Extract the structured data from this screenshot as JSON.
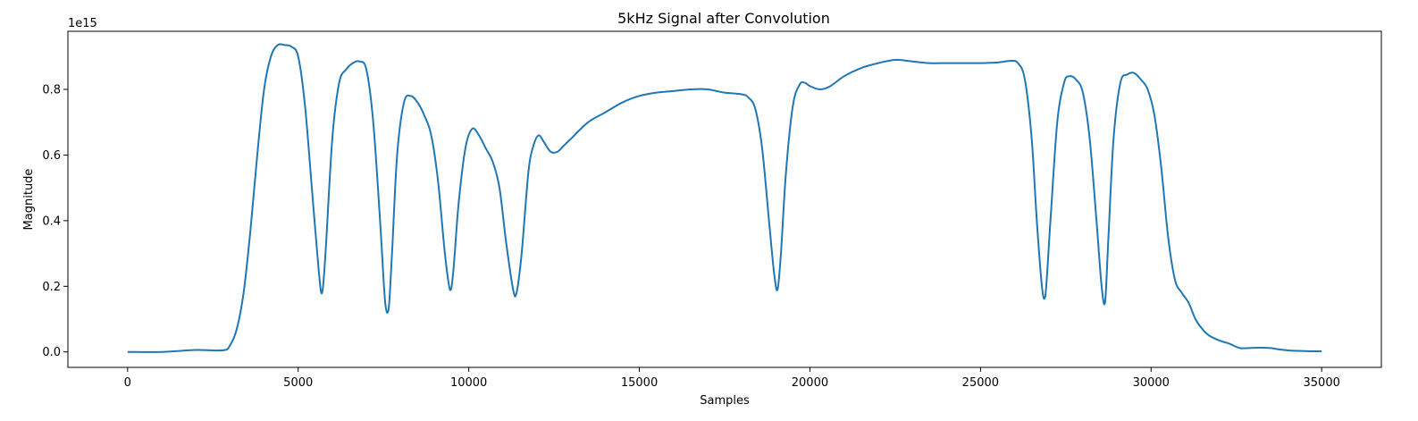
{
  "chart_data": {
    "type": "line",
    "title": "5kHz Signal after Convolution",
    "xlabel": "Samples",
    "ylabel": "Magnitude",
    "y_offset_label": "1e15",
    "xlim": [
      -1750,
      36750
    ],
    "ylim": [
      -0.047,
      0.977
    ],
    "x_ticks": [
      0,
      5000,
      10000,
      15000,
      20000,
      25000,
      30000,
      35000
    ],
    "x_tick_labels": [
      "0",
      "5000",
      "10000",
      "15000",
      "20000",
      "25000",
      "30000",
      "35000"
    ],
    "y_ticks": [
      0.0,
      0.2,
      0.4,
      0.6,
      0.8
    ],
    "y_tick_labels": [
      "0.0",
      "0.2",
      "0.4",
      "0.6",
      "0.8"
    ],
    "grid": false,
    "series": [
      {
        "color": "#1f77b4",
        "x": [
          0,
          1000,
          2000,
          2800,
          3000,
          3200,
          3400,
          3600,
          3800,
          4000,
          4200,
          4400,
          4600,
          4800,
          5000,
          5200,
          5400,
          5600,
          5700,
          5800,
          6000,
          6200,
          6400,
          6600,
          6800,
          7000,
          7200,
          7400,
          7550,
          7650,
          7750,
          7900,
          8100,
          8300,
          8500,
          8700,
          8900,
          9100,
          9300,
          9450,
          9550,
          9700,
          9900,
          10100,
          10300,
          10500,
          10700,
          10900,
          11100,
          11300,
          11400,
          11550,
          11750,
          11900,
          12050,
          12200,
          12400,
          12600,
          12800,
          13000,
          13500,
          14000,
          14500,
          15000,
          15500,
          16000,
          16500,
          17000,
          17500,
          18000,
          18200,
          18400,
          18600,
          18800,
          18950,
          19050,
          19150,
          19300,
          19500,
          19700,
          19850,
          20000,
          20300,
          20600,
          21000,
          21500,
          22000,
          22500,
          23000,
          23500,
          24000,
          24500,
          25000,
          25500,
          25900,
          26100,
          26300,
          26500,
          26650,
          26800,
          26900,
          27050,
          27250,
          27450,
          27600,
          27800,
          28000,
          28200,
          28400,
          28550,
          28650,
          28750,
          28900,
          29100,
          29300,
          29500,
          29700,
          29900,
          30100,
          30300,
          30500,
          30700,
          30900,
          31100,
          31300,
          31500,
          31700,
          32000,
          32300,
          32600,
          32900,
          33200,
          33500,
          33800,
          34100,
          34400,
          34700,
          35000
        ],
        "y": [
          0.0,
          0.0,
          0.006,
          0.005,
          0.02,
          0.07,
          0.18,
          0.37,
          0.6,
          0.8,
          0.9,
          0.935,
          0.935,
          0.93,
          0.9,
          0.75,
          0.5,
          0.25,
          0.18,
          0.3,
          0.65,
          0.82,
          0.86,
          0.88,
          0.885,
          0.86,
          0.7,
          0.4,
          0.15,
          0.13,
          0.3,
          0.6,
          0.76,
          0.78,
          0.76,
          0.72,
          0.66,
          0.52,
          0.3,
          0.19,
          0.25,
          0.45,
          0.62,
          0.68,
          0.66,
          0.62,
          0.58,
          0.5,
          0.33,
          0.19,
          0.18,
          0.3,
          0.55,
          0.63,
          0.66,
          0.64,
          0.61,
          0.61,
          0.63,
          0.65,
          0.7,
          0.73,
          0.76,
          0.78,
          0.79,
          0.795,
          0.8,
          0.8,
          0.79,
          0.785,
          0.775,
          0.74,
          0.62,
          0.4,
          0.24,
          0.19,
          0.3,
          0.55,
          0.75,
          0.815,
          0.82,
          0.81,
          0.8,
          0.81,
          0.84,
          0.865,
          0.88,
          0.89,
          0.885,
          0.88,
          0.88,
          0.88,
          0.88,
          0.882,
          0.887,
          0.88,
          0.83,
          0.65,
          0.4,
          0.2,
          0.17,
          0.4,
          0.7,
          0.82,
          0.84,
          0.83,
          0.79,
          0.65,
          0.4,
          0.2,
          0.15,
          0.35,
          0.65,
          0.82,
          0.845,
          0.85,
          0.83,
          0.8,
          0.72,
          0.56,
          0.35,
          0.22,
          0.18,
          0.15,
          0.1,
          0.07,
          0.05,
          0.035,
          0.025,
          0.012,
          0.012,
          0.013,
          0.012,
          0.007,
          0.004,
          0.003,
          0.002,
          0.002
        ]
      }
    ]
  }
}
